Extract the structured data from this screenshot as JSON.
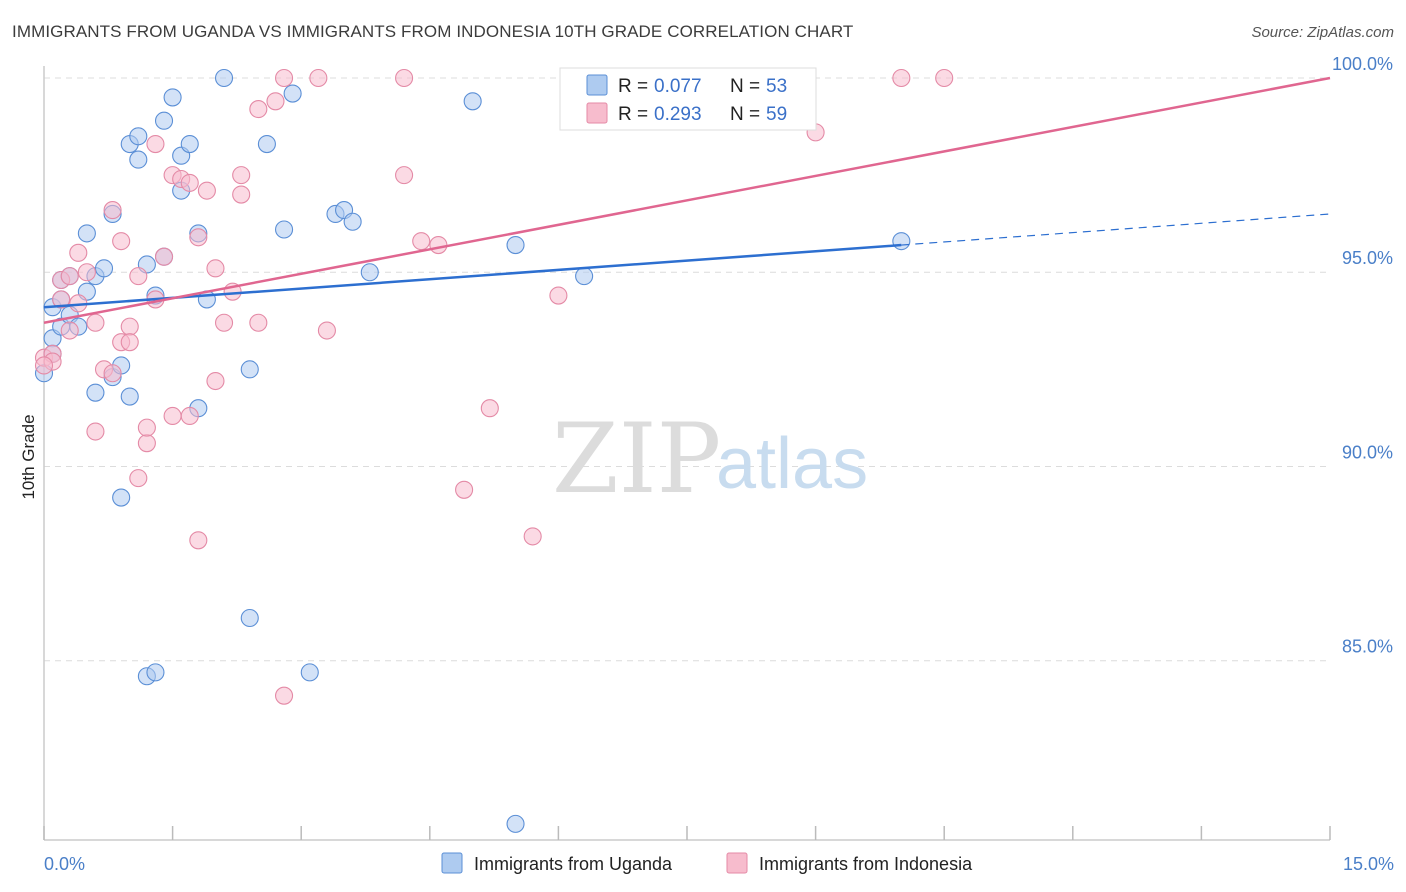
{
  "header": {
    "title": "IMMIGRANTS FROM UGANDA VS IMMIGRANTS FROM INDONESIA 10TH GRADE CORRELATION CHART",
    "source": "Source: ZipAtlas.com"
  },
  "watermark": {
    "part1": "ZIP",
    "part2": "atlas"
  },
  "colors": {
    "uganda_fill": "#aecbf0",
    "uganda_stroke": "#5b8fd6",
    "uganda_line": "#2d6fd0",
    "indonesia_fill": "#f7bccd",
    "indonesia_stroke": "#e48aa6",
    "indonesia_line": "#e06690",
    "grid": "#dcdcdc",
    "tick_text": "#4a7fc8"
  },
  "legend": {
    "rows": [
      {
        "r_label": "R =",
        "r_value": "0.077",
        "n_label": "N =",
        "n_value": "53"
      },
      {
        "r_label": "R =",
        "r_value": "0.293",
        "n_label": "N =",
        "n_value": "59"
      }
    ]
  },
  "chart_data": {
    "type": "scatter",
    "title": "IMMIGRANTS FROM UGANDA VS IMMIGRANTS FROM INDONESIA 10TH GRADE CORRELATION CHART",
    "xlabel": "",
    "ylabel": "10th Grade",
    "xlim": [
      0,
      15
    ],
    "ylim": [
      80.5,
      100.8
    ],
    "x_tick_labels": [
      "0.0%",
      "15.0%"
    ],
    "y_ticks": [
      85,
      90,
      95,
      100
    ],
    "y_tick_labels": [
      "85.0%",
      "90.0%",
      "95.0%",
      "100.0%"
    ],
    "grid": true,
    "legend_position": "top-center",
    "series": [
      {
        "name": "Immigrants from Uganda",
        "trend": {
          "x": [
            0,
            10
          ],
          "y": [
            94.1,
            95.7
          ],
          "dashed_extension_to": [
            15,
            96.5
          ]
        },
        "points": [
          [
            0.0,
            92.4
          ],
          [
            0.1,
            94.1
          ],
          [
            0.1,
            93.3
          ],
          [
            0.2,
            93.6
          ],
          [
            0.2,
            94.3
          ],
          [
            0.2,
            94.8
          ],
          [
            0.3,
            93.9
          ],
          [
            0.3,
            94.9
          ],
          [
            0.4,
            93.6
          ],
          [
            0.5,
            96.0
          ],
          [
            0.5,
            94.5
          ],
          [
            0.6,
            91.9
          ],
          [
            0.6,
            94.9
          ],
          [
            0.7,
            95.1
          ],
          [
            0.8,
            92.3
          ],
          [
            0.8,
            96.5
          ],
          [
            0.9,
            92.6
          ],
          [
            0.9,
            89.2
          ],
          [
            1.0,
            98.3
          ],
          [
            1.0,
            91.8
          ],
          [
            1.1,
            98.5
          ],
          [
            1.1,
            97.9
          ],
          [
            1.2,
            95.2
          ],
          [
            1.2,
            84.6
          ],
          [
            1.3,
            94.4
          ],
          [
            1.3,
            84.7
          ],
          [
            1.4,
            95.4
          ],
          [
            1.4,
            98.9
          ],
          [
            1.5,
            99.5
          ],
          [
            1.6,
            98.0
          ],
          [
            1.6,
            97.1
          ],
          [
            1.7,
            98.3
          ],
          [
            1.8,
            96.0
          ],
          [
            1.8,
            91.5
          ],
          [
            1.9,
            94.3
          ],
          [
            2.1,
            100.0
          ],
          [
            2.4,
            92.5
          ],
          [
            2.4,
            86.1
          ],
          [
            2.6,
            98.3
          ],
          [
            2.8,
            96.1
          ],
          [
            2.9,
            99.6
          ],
          [
            3.1,
            84.7
          ],
          [
            3.4,
            96.5
          ],
          [
            3.5,
            96.6
          ],
          [
            3.6,
            96.3
          ],
          [
            3.8,
            95.0
          ],
          [
            5.0,
            99.4
          ],
          [
            5.5,
            95.7
          ],
          [
            6.3,
            94.9
          ],
          [
            8.0,
            100.0
          ],
          [
            10.0,
            95.8
          ],
          [
            5.5,
            80.8
          ],
          [
            0.1,
            92.9
          ]
        ]
      },
      {
        "name": "Immigrants from Indonesia",
        "trend": {
          "x": [
            0,
            15
          ],
          "y": [
            93.7,
            100.0
          ]
        },
        "points": [
          [
            0.0,
            92.8
          ],
          [
            0.1,
            92.9
          ],
          [
            0.1,
            92.7
          ],
          [
            0.2,
            94.3
          ],
          [
            0.2,
            94.8
          ],
          [
            0.3,
            94.9
          ],
          [
            0.3,
            93.5
          ],
          [
            0.4,
            95.5
          ],
          [
            0.4,
            94.2
          ],
          [
            0.5,
            95.0
          ],
          [
            0.6,
            93.7
          ],
          [
            0.6,
            90.9
          ],
          [
            0.7,
            92.5
          ],
          [
            0.8,
            96.6
          ],
          [
            0.8,
            92.4
          ],
          [
            0.9,
            95.8
          ],
          [
            0.9,
            93.2
          ],
          [
            1.0,
            93.6
          ],
          [
            1.0,
            93.2
          ],
          [
            1.1,
            94.9
          ],
          [
            1.1,
            89.7
          ],
          [
            1.2,
            90.6
          ],
          [
            1.2,
            91.0
          ],
          [
            1.3,
            98.3
          ],
          [
            1.3,
            94.3
          ],
          [
            1.4,
            95.4
          ],
          [
            1.5,
            97.5
          ],
          [
            1.5,
            91.3
          ],
          [
            1.6,
            97.4
          ],
          [
            1.7,
            91.3
          ],
          [
            1.7,
            97.3
          ],
          [
            1.8,
            95.9
          ],
          [
            1.8,
            88.1
          ],
          [
            1.9,
            97.1
          ],
          [
            2.0,
            92.2
          ],
          [
            2.0,
            95.1
          ],
          [
            2.1,
            93.7
          ],
          [
            2.2,
            94.5
          ],
          [
            2.3,
            97.5
          ],
          [
            2.3,
            97.0
          ],
          [
            2.5,
            99.2
          ],
          [
            2.5,
            93.7
          ],
          [
            2.7,
            99.4
          ],
          [
            2.8,
            100.0
          ],
          [
            2.8,
            84.1
          ],
          [
            3.2,
            100.0
          ],
          [
            3.3,
            93.5
          ],
          [
            4.2,
            100.0
          ],
          [
            4.2,
            97.5
          ],
          [
            4.4,
            95.8
          ],
          [
            4.6,
            95.7
          ],
          [
            4.9,
            89.4
          ],
          [
            5.2,
            91.5
          ],
          [
            5.7,
            88.2
          ],
          [
            6.0,
            94.4
          ],
          [
            9.0,
            98.6
          ],
          [
            10.0,
            100.0
          ],
          [
            10.5,
            100.0
          ],
          [
            0.0,
            92.6
          ]
        ]
      }
    ]
  }
}
